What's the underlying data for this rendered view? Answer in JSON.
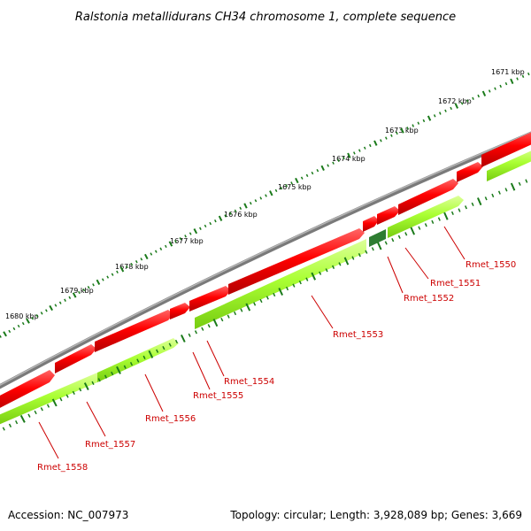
{
  "title": "Ralstonia metallidurans CH34 chromosome 1, complete sequence",
  "footer": {
    "accession": "Accession: NC_007973",
    "summary": "Topology: circular; Length: 3,928,089 bp; Genes: 3,669"
  },
  "ruler_ticks": [
    "1671 kbp",
    "1672 kbp",
    "1673 kbp",
    "1674 kbp",
    "1675 kbp",
    "1676 kbp",
    "1677 kbp",
    "1678 kbp",
    "1679 kbp",
    "1680 kbp"
  ],
  "gene_labels": [
    "Rmet_1550",
    "Rmet_1551",
    "Rmet_1552",
    "Rmet_1553",
    "Rmet_1554",
    "Rmet_1555",
    "Rmet_1556",
    "Rmet_1557",
    "Rmet_1558"
  ],
  "colors": {
    "backbone": "#7a7a7a",
    "cds_forward": "#ff0000",
    "cds_reverse": "#aaff33",
    "tick": "#1a7a1a",
    "label": "#cc0000",
    "highlight": "#2e7d32"
  }
}
